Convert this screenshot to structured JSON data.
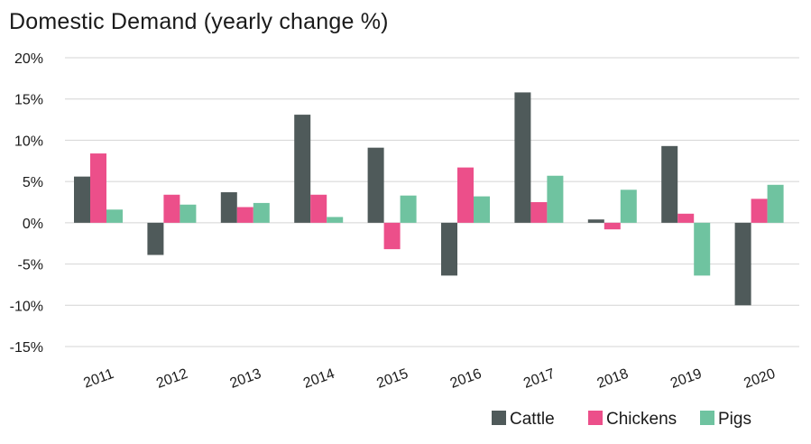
{
  "chart_data": {
    "type": "bar",
    "title": "Domestic Demand (yearly change %)",
    "categories": [
      "2011",
      "2012",
      "2013",
      "2014",
      "2015",
      "2016",
      "2017",
      "2018",
      "2019",
      "2020"
    ],
    "series": [
      {
        "name": "Cattle",
        "color": "#4f5a5a",
        "values": [
          5.6,
          -3.9,
          3.7,
          13.1,
          9.1,
          -6.4,
          15.8,
          0.4,
          9.3,
          -10.0
        ]
      },
      {
        "name": "Chickens",
        "color": "#ec4f8a",
        "values": [
          8.4,
          3.4,
          1.9,
          3.4,
          -3.2,
          6.7,
          2.5,
          -0.8,
          1.1,
          2.9
        ]
      },
      {
        "name": "Pigs",
        "color": "#6fc3a0",
        "values": [
          1.6,
          2.2,
          2.4,
          0.7,
          3.3,
          3.2,
          5.7,
          4.0,
          -6.4,
          4.6
        ]
      }
    ],
    "ylim": [
      -15,
      20
    ],
    "yticks": [
      20,
      15,
      10,
      5,
      0,
      -5,
      -10,
      -15
    ],
    "ytick_labels": [
      "20%",
      "15%",
      "10%",
      "5%",
      "0%",
      "-5%",
      "-10%",
      "-15%"
    ],
    "grid": true,
    "legend_position": "bottom-right",
    "xlabel": "",
    "ylabel": ""
  }
}
